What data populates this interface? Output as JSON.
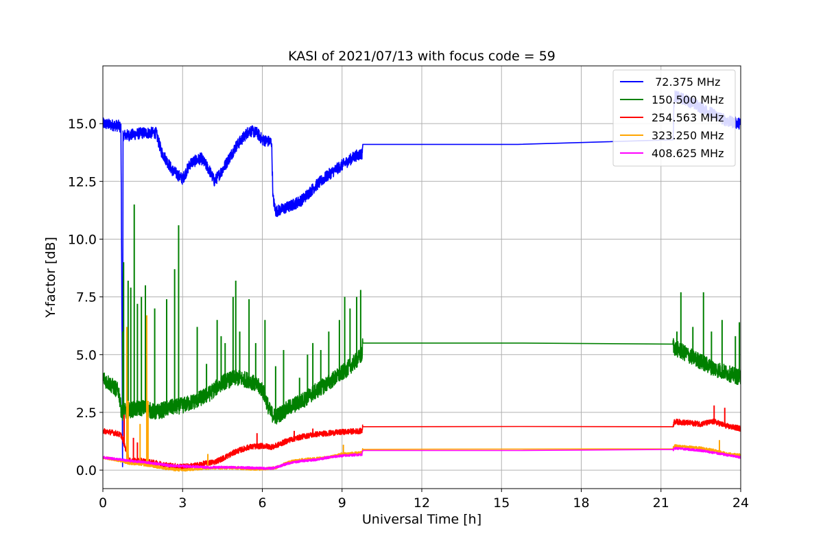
{
  "chart_data": {
    "type": "line",
    "title": "KASI of 2021/07/13 with focus code = 59",
    "xlabel": "Universal Time [h]",
    "ylabel": "Y-factor [dB]",
    "xlim": [
      0,
      24
    ],
    "ylim": [
      -0.8,
      17.5
    ],
    "x_ticks": [
      "0",
      "3",
      "6",
      "9",
      "12",
      "15",
      "18",
      "21",
      "24"
    ],
    "y_ticks": [
      "0.0",
      "2.5",
      "5.0",
      "7.5",
      "10.0",
      "12.5",
      "15.0"
    ],
    "grid": true,
    "legend_position": "top-right",
    "series": [
      {
        "name": " 72.375 MHz",
        "color": "#0000ff",
        "noise": 0.25,
        "points": [
          [
            0.0,
            15.0
          ],
          [
            0.6,
            14.9
          ],
          [
            0.68,
            14.8
          ],
          [
            0.72,
            6.0
          ],
          [
            0.74,
            0.0
          ],
          [
            0.76,
            14.5
          ],
          [
            1.0,
            14.5
          ],
          [
            1.5,
            14.6
          ],
          [
            2.0,
            14.6
          ],
          [
            2.2,
            13.8
          ],
          [
            2.6,
            13.0
          ],
          [
            3.0,
            12.6
          ],
          [
            3.3,
            13.3
          ],
          [
            3.7,
            13.5
          ],
          [
            4.0,
            13.0
          ],
          [
            4.2,
            12.5
          ],
          [
            4.5,
            13.0
          ],
          [
            5.0,
            14.0
          ],
          [
            5.5,
            14.7
          ],
          [
            5.8,
            14.6
          ],
          [
            6.0,
            14.3
          ],
          [
            6.35,
            14.2
          ],
          [
            6.4,
            11.8
          ],
          [
            6.5,
            11.2
          ],
          [
            7.0,
            11.4
          ],
          [
            7.5,
            11.7
          ],
          [
            8.0,
            12.3
          ],
          [
            8.5,
            12.8
          ],
          [
            9.0,
            13.2
          ],
          [
            9.5,
            13.6
          ],
          [
            9.75,
            13.7
          ],
          [
            9.78,
            14.1
          ],
          [
            21.45,
            14.1
          ],
          [
            21.5,
            16.2
          ],
          [
            22.0,
            16.0
          ],
          [
            22.5,
            15.7
          ],
          [
            23.0,
            15.4
          ],
          [
            23.5,
            15.1
          ],
          [
            24.0,
            15.0
          ]
        ]
      },
      {
        "name": "150.500 MHz",
        "color": "#008000",
        "noise": 0.35,
        "points": [
          [
            0.0,
            4.0
          ],
          [
            0.3,
            3.7
          ],
          [
            0.6,
            3.4
          ],
          [
            0.7,
            2.5
          ],
          [
            1.0,
            2.6
          ],
          [
            1.5,
            2.7
          ],
          [
            2.0,
            2.5
          ],
          [
            2.5,
            2.7
          ],
          [
            3.0,
            2.8
          ],
          [
            3.5,
            3.0
          ],
          [
            4.0,
            3.3
          ],
          [
            4.5,
            3.8
          ],
          [
            5.0,
            4.0
          ],
          [
            5.5,
            3.9
          ],
          [
            6.0,
            3.5
          ],
          [
            6.3,
            2.5
          ],
          [
            6.5,
            2.3
          ],
          [
            7.0,
            2.7
          ],
          [
            7.5,
            3.0
          ],
          [
            8.0,
            3.4
          ],
          [
            8.5,
            3.8
          ],
          [
            9.0,
            4.2
          ],
          [
            9.5,
            4.7
          ],
          [
            9.75,
            5.0
          ],
          [
            9.78,
            5.5
          ],
          [
            21.45,
            5.5
          ],
          [
            21.5,
            5.3
          ],
          [
            22.0,
            5.0
          ],
          [
            22.5,
            4.7
          ],
          [
            23.0,
            4.4
          ],
          [
            23.5,
            4.2
          ],
          [
            24.0,
            4.0
          ]
        ],
        "spikes": [
          [
            0.75,
            6.0
          ],
          [
            0.78,
            9.0
          ],
          [
            0.95,
            8.2
          ],
          [
            1.05,
            7.9
          ],
          [
            1.18,
            11.5
          ],
          [
            1.3,
            7.2
          ],
          [
            1.45,
            7.5
          ],
          [
            1.6,
            8.0
          ],
          [
            1.95,
            7.0
          ],
          [
            2.4,
            7.4
          ],
          [
            2.7,
            8.7
          ],
          [
            2.85,
            10.6
          ],
          [
            3.55,
            6.2
          ],
          [
            3.9,
            4.6
          ],
          [
            4.3,
            6.5
          ],
          [
            4.45,
            5.8
          ],
          [
            4.6,
            5.5
          ],
          [
            4.9,
            7.5
          ],
          [
            5.0,
            8.2
          ],
          [
            5.15,
            6.0
          ],
          [
            5.5,
            7.4
          ],
          [
            5.75,
            5.5
          ],
          [
            6.1,
            6.5
          ],
          [
            6.5,
            4.5
          ],
          [
            6.8,
            5.2
          ],
          [
            7.4,
            4.0
          ],
          [
            7.7,
            5.0
          ],
          [
            7.9,
            5.5
          ],
          [
            8.2,
            5.2
          ],
          [
            8.5,
            6.0
          ],
          [
            8.9,
            6.5
          ],
          [
            9.1,
            7.5
          ],
          [
            9.3,
            7.0
          ],
          [
            9.55,
            7.5
          ],
          [
            9.7,
            7.8
          ],
          [
            21.6,
            6.0
          ],
          [
            21.75,
            7.7
          ],
          [
            22.2,
            6.2
          ],
          [
            22.6,
            7.7
          ],
          [
            22.9,
            6.0
          ],
          [
            23.3,
            6.5
          ],
          [
            23.8,
            5.8
          ],
          [
            23.95,
            6.4
          ]
        ]
      },
      {
        "name": "254.563 MHz",
        "color": "#ff0000",
        "noise": 0.12,
        "points": [
          [
            0.0,
            1.7
          ],
          [
            0.5,
            1.6
          ],
          [
            0.7,
            1.5
          ],
          [
            1.0,
            0.4
          ],
          [
            1.5,
            0.4
          ],
          [
            2.0,
            0.3
          ],
          [
            2.5,
            0.2
          ],
          [
            3.0,
            0.15
          ],
          [
            3.5,
            0.2
          ],
          [
            3.9,
            0.3
          ],
          [
            4.2,
            0.35
          ],
          [
            4.5,
            0.5
          ],
          [
            5.0,
            0.8
          ],
          [
            5.5,
            1.0
          ],
          [
            6.0,
            1.05
          ],
          [
            6.4,
            1.0
          ],
          [
            7.0,
            1.3
          ],
          [
            7.5,
            1.45
          ],
          [
            8.0,
            1.55
          ],
          [
            8.5,
            1.6
          ],
          [
            9.0,
            1.65
          ],
          [
            9.75,
            1.7
          ],
          [
            9.78,
            1.88
          ],
          [
            21.45,
            1.9
          ],
          [
            21.5,
            2.1
          ],
          [
            22.0,
            2.05
          ],
          [
            22.5,
            2.0
          ],
          [
            23.0,
            2.1
          ],
          [
            23.5,
            1.9
          ],
          [
            24.0,
            1.8
          ]
        ],
        "spikes": [
          [
            0.8,
            2.4
          ],
          [
            1.15,
            1.4
          ],
          [
            1.3,
            1.2
          ],
          [
            5.8,
            1.6
          ],
          [
            7.2,
            1.7
          ],
          [
            7.9,
            1.8
          ],
          [
            23.0,
            2.8
          ],
          [
            23.4,
            2.7
          ]
        ]
      },
      {
        "name": "323.250 MHz",
        "color": "#ffa500",
        "noise": 0.06,
        "points": [
          [
            0.0,
            0.55
          ],
          [
            0.5,
            0.45
          ],
          [
            0.7,
            0.4
          ],
          [
            1.0,
            0.3
          ],
          [
            1.5,
            0.25
          ],
          [
            2.0,
            0.15
          ],
          [
            2.5,
            0.05
          ],
          [
            3.0,
            0.0
          ],
          [
            3.5,
            0.05
          ],
          [
            4.0,
            0.1
          ],
          [
            4.5,
            0.1
          ],
          [
            5.0,
            0.1
          ],
          [
            5.5,
            0.05
          ],
          [
            6.0,
            0.05
          ],
          [
            6.5,
            0.1
          ],
          [
            7.0,
            0.35
          ],
          [
            7.5,
            0.45
          ],
          [
            8.0,
            0.5
          ],
          [
            8.5,
            0.55
          ],
          [
            9.0,
            0.7
          ],
          [
            9.75,
            0.75
          ],
          [
            9.78,
            0.9
          ],
          [
            21.45,
            0.92
          ],
          [
            21.5,
            1.05
          ],
          [
            22.0,
            1.0
          ],
          [
            22.5,
            0.95
          ],
          [
            23.0,
            0.85
          ],
          [
            23.5,
            0.7
          ],
          [
            24.0,
            0.65
          ]
        ],
        "spikes": [
          [
            0.9,
            6.2
          ],
          [
            0.95,
            3.0
          ],
          [
            1.4,
            2.0
          ],
          [
            1.65,
            6.7
          ],
          [
            1.7,
            3.0
          ],
          [
            3.95,
            0.7
          ],
          [
            9.05,
            1.1
          ],
          [
            23.2,
            1.3
          ]
        ]
      },
      {
        "name": "408.625 MHz",
        "color": "#ff00ff",
        "noise": 0.05,
        "points": [
          [
            0.0,
            0.55
          ],
          [
            0.5,
            0.48
          ],
          [
            1.0,
            0.4
          ],
          [
            1.5,
            0.35
          ],
          [
            2.0,
            0.28
          ],
          [
            2.5,
            0.2
          ],
          [
            3.0,
            0.17
          ],
          [
            3.5,
            0.15
          ],
          [
            4.0,
            0.12
          ],
          [
            4.5,
            0.12
          ],
          [
            5.0,
            0.12
          ],
          [
            5.5,
            0.1
          ],
          [
            6.0,
            0.08
          ],
          [
            6.4,
            0.08
          ],
          [
            7.0,
            0.3
          ],
          [
            7.5,
            0.4
          ],
          [
            8.0,
            0.45
          ],
          [
            8.5,
            0.55
          ],
          [
            9.0,
            0.62
          ],
          [
            9.75,
            0.68
          ],
          [
            9.78,
            0.85
          ],
          [
            21.45,
            0.85
          ],
          [
            21.5,
            0.95
          ],
          [
            22.0,
            0.9
          ],
          [
            22.5,
            0.85
          ],
          [
            23.0,
            0.75
          ],
          [
            23.5,
            0.65
          ],
          [
            24.0,
            0.55
          ]
        ]
      }
    ]
  }
}
